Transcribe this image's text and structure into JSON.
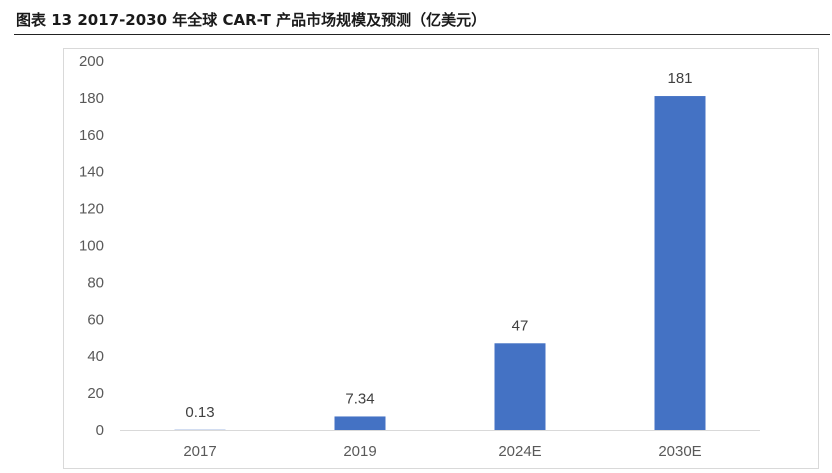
{
  "title": "图表 13 2017-2030 年全球 CAR-T 产品市场规模及预测（亿美元）",
  "chart_data": {
    "type": "bar",
    "title": "图表 13 2017-2030 年全球 CAR-T 产品市场规模及预测（亿美元）",
    "categories": [
      "2017",
      "2019",
      "2024E",
      "2030E"
    ],
    "series": [
      {
        "name": "",
        "values": [
          0.13,
          7.34,
          47,
          181
        ]
      }
    ],
    "data_labels": [
      "0.13",
      "7.34",
      "47",
      "181"
    ],
    "ylim": [
      0,
      200
    ],
    "yticks": [
      0,
      20,
      40,
      60,
      80,
      100,
      120,
      140,
      160,
      180,
      200
    ],
    "ytick_labels": [
      "0",
      "20",
      "40",
      "60",
      "80",
      "100",
      "120",
      "140",
      "160",
      "180",
      "200"
    ],
    "xlabel": "",
    "ylabel": "",
    "grid": false,
    "legend": "none",
    "bar_color": "#4472C4"
  }
}
